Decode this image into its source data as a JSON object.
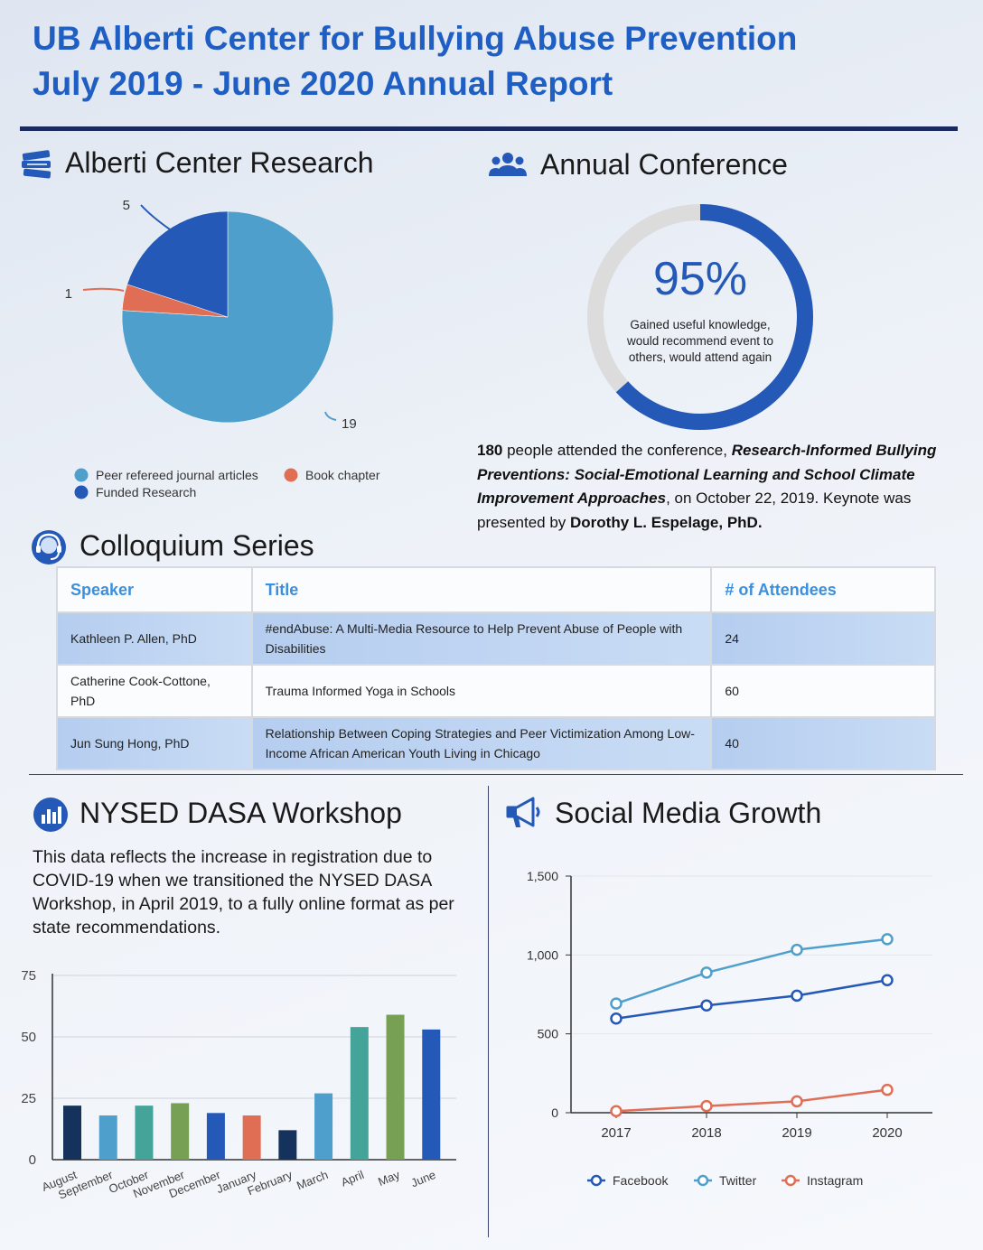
{
  "header": {
    "line1": "UB Alberti Center for Bullying Abuse Prevention",
    "line2": "July 2019 - June 2020 Annual Report"
  },
  "research": {
    "title": "Alberti Center Research",
    "icon": "books-icon",
    "chart_data": {
      "type": "pie",
      "slices": [
        {
          "label": "Peer refereed journal articles",
          "value": 19,
          "color": "#4f9fcc"
        },
        {
          "label": "Book chapter",
          "value": 1,
          "color": "#e06e55"
        },
        {
          "label": "Funded Research",
          "value": 5,
          "color": "#2459b8"
        }
      ],
      "legend_placement": "bottom"
    }
  },
  "conference": {
    "title": "Annual Conference",
    "icon": "users-icon",
    "percent_label": "95%",
    "percent_value": 95,
    "caption": [
      "Gained useful knowledge,",
      "would recommend event to",
      "others, would attend again"
    ],
    "attendees": "180",
    "text_a": " people attended the conference, ",
    "conf_title": "Research-Informed Bullying Preventions: Social-Emotional Learning and School Climate Improvement Approaches",
    "text_b": ", on October 22, 2019. Keynote was presented by ",
    "keynote": "Dorothy L. Espelage, PhD."
  },
  "colloquium": {
    "title": "Colloquium Series",
    "icon": "speaker-icon",
    "headers": [
      "Speaker",
      "Title",
      "# of Attendees"
    ],
    "rows": [
      {
        "speaker": "Kathleen P. Allen, PhD",
        "title": "#endAbuse: A Multi-Media Resource to Help Prevent Abuse of People with Disabilities",
        "attendees": "24"
      },
      {
        "speaker": "Catherine Cook-Cottone, PhD",
        "title": "Trauma Informed Yoga in Schools",
        "attendees": "60"
      },
      {
        "speaker": "Jun Sung Hong, PhD",
        "title": "Relationship Between Coping Strategies and Peer Victimization Among Low-Income African American Youth Living in Chicago",
        "attendees": "40"
      }
    ]
  },
  "dasa": {
    "title": "NYSED DASA Workshop",
    "icon": "chart-badge-icon",
    "description": "This data reflects the increase in registration due to COVID-19 when we transitioned the NYSED DASA Workshop, in April 2019, to a fully online format as per state recommendations.",
    "chart_data": {
      "type": "bar",
      "categories": [
        "August",
        "September",
        "October",
        "November",
        "December",
        "January",
        "February",
        "March",
        "April",
        "May",
        "June"
      ],
      "values": [
        22,
        18,
        22,
        23,
        19,
        18,
        12,
        27,
        54,
        59,
        53
      ],
      "colors": [
        "#14325c",
        "#4f9fcc",
        "#45a49a",
        "#77a055",
        "#2459b8",
        "#e06e55",
        "#14325c",
        "#4f9fcc",
        "#45a49a",
        "#77a055",
        "#2459b8"
      ],
      "ylim": [
        0,
        75
      ],
      "yticks": [
        "0",
        "25",
        "50",
        "75"
      ]
    }
  },
  "social": {
    "title": "Social Media Growth",
    "icon": "megaphone-icon",
    "chart_data": {
      "type": "line",
      "x": [
        "2017",
        "2018",
        "2019",
        "2020"
      ],
      "ylim": [
        0,
        1500
      ],
      "yticks": [
        "0",
        "500",
        "1,000",
        "1,500"
      ],
      "series": [
        {
          "name": "Facebook",
          "values": [
            597,
            680,
            742,
            840
          ],
          "color": "#2459b8"
        },
        {
          "name": "Twitter",
          "values": [
            692,
            888,
            1033,
            1100
          ],
          "color": "#4f9fcc"
        },
        {
          "name": "Instagram",
          "values": [
            10,
            42,
            72,
            145
          ],
          "color": "#e06e55"
        }
      ],
      "legend_placement": "bottom"
    }
  }
}
